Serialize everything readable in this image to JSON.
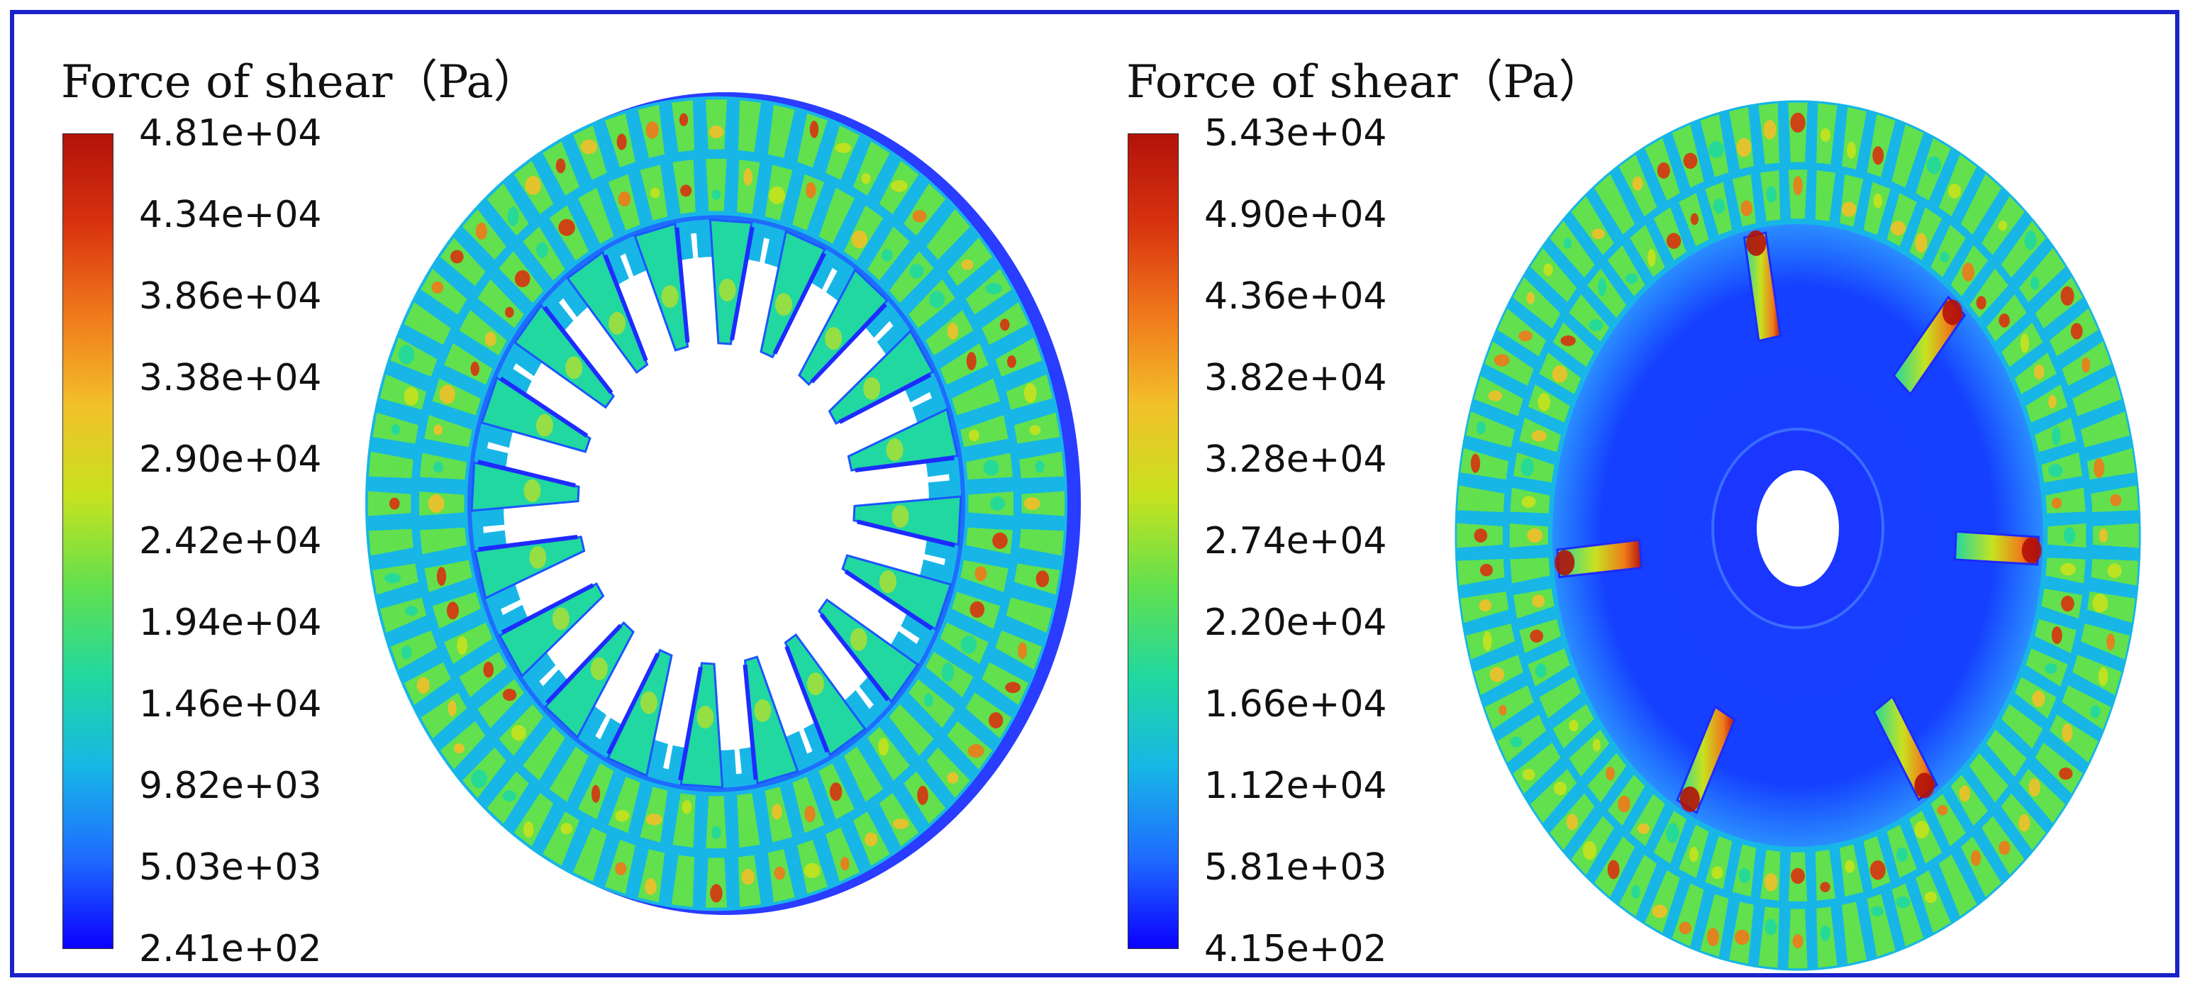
{
  "colormap": [
    "#0b00ff",
    "#1f6cff",
    "#17b6e6",
    "#21d8a0",
    "#62e04e",
    "#c7e21e",
    "#f2c02a",
    "#f0791b",
    "#d8330f",
    "#b3120a"
  ],
  "panels": [
    {
      "title": "Force of shear（Pa）",
      "colorbar_ticks": [
        "4.81e+04",
        "4.34e+04",
        "3.86e+04",
        "3.38e+04",
        "2.90e+04",
        "2.42e+04",
        "1.94e+04",
        "1.46e+04",
        "9.82e+03",
        "5.03e+03",
        "2.41e+02"
      ]
    },
    {
      "title": "Force of shear（Pa）",
      "colorbar_ticks": [
        "5.43e+04",
        "4.90e+04",
        "4.36e+04",
        "3.82e+04",
        "3.28e+04",
        "2.74e+04",
        "2.20e+04",
        "1.66e+04",
        "1.12e+04",
        "5.81e+03",
        "4.15e+02"
      ]
    }
  ]
}
